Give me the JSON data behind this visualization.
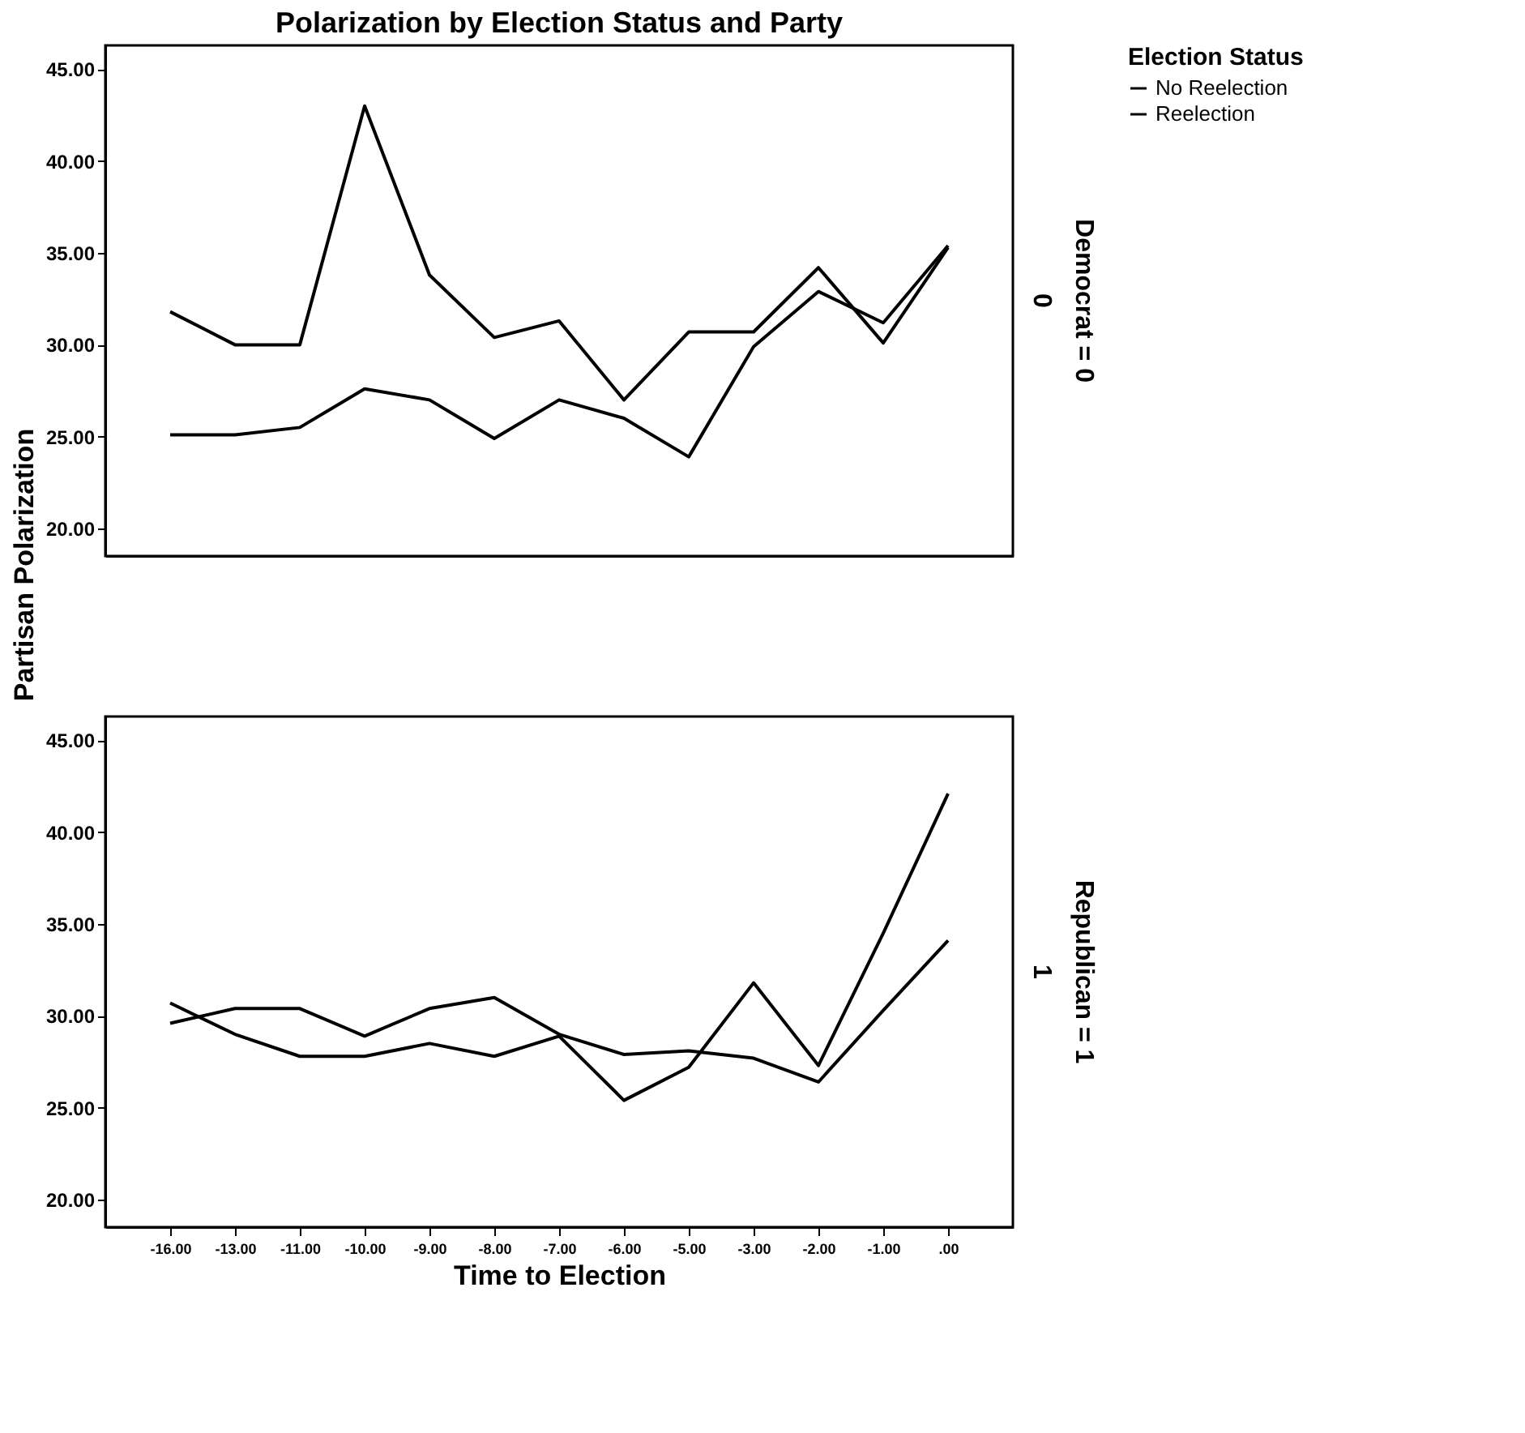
{
  "chart_data": [
    {
      "type": "line",
      "title": "Polarization by Election Status and Party",
      "ylabel": "Partisan Polarization",
      "legend_title": "Election Status",
      "legend": "top right",
      "grid": false,
      "marker": "none",
      "line_style": "solid",
      "tick_labels": "y",
      "categories": [
        "-16.00",
        "-13.00",
        "-11.00",
        "-10.00",
        "-9.00",
        "-8.00",
        "-7.00",
        "-6.00",
        "-5.00",
        "-3.00",
        "-2.00",
        "-1.00",
        ".00"
      ],
      "ylim": [
        18.5,
        46.3
      ],
      "yticks": [
        {
          "value": 20,
          "label": "20.00"
        },
        {
          "value": 25,
          "label": "25.00"
        },
        {
          "value": 30,
          "label": "30.00"
        },
        {
          "value": 35,
          "label": "35.00"
        },
        {
          "value": 40,
          "label": "40.00"
        },
        {
          "value": 45,
          "label": "45.00"
        }
      ],
      "annotations": [
        "Democrat = 0",
        "0"
      ],
      "series": [
        {
          "name": "No Reelection",
          "color": "#000000",
          "values": [
            31.8,
            30.0,
            30.0,
            43.0,
            33.8,
            30.4,
            31.3,
            27.0,
            30.7,
            30.7,
            34.2,
            30.1,
            35.3
          ]
        },
        {
          "name": "Reelection",
          "color": "#000000",
          "values": [
            25.1,
            25.1,
            25.5,
            27.6,
            27.0,
            24.9,
            27.0,
            26.0,
            23.9,
            29.9,
            32.9,
            31.2,
            35.4
          ]
        }
      ]
    },
    {
      "type": "line",
      "xlabel": "Time to Election",
      "grid": false,
      "marker": "none",
      "line_style": "solid",
      "categories": [
        "-16.00",
        "-13.00",
        "-11.00",
        "-10.00",
        "-9.00",
        "-8.00",
        "-7.00",
        "-6.00",
        "-5.00",
        "-3.00",
        "-2.00",
        "-1.00",
        ".00"
      ],
      "ylim": [
        18.5,
        46.3
      ],
      "yticks": [
        {
          "value": 20,
          "label": "20.00"
        },
        {
          "value": 25,
          "label": "25.00"
        },
        {
          "value": 30,
          "label": "30.00"
        },
        {
          "value": 35,
          "label": "35.00"
        },
        {
          "value": 40,
          "label": "40.00"
        },
        {
          "value": 45,
          "label": "45.00"
        }
      ],
      "annotations": [
        "Republican = 1",
        "1"
      ],
      "series": [
        {
          "name": "No Reelection",
          "color": "#000000",
          "values": [
            30.7,
            29.0,
            27.8,
            27.8,
            28.5,
            27.8,
            28.9,
            25.4,
            27.2,
            31.8,
            27.3,
            34.5,
            42.1
          ]
        },
        {
          "name": "Reelection",
          "color": "#000000",
          "values": [
            29.6,
            30.4,
            30.4,
            28.9,
            30.4,
            31.0,
            29.0,
            27.9,
            28.1,
            27.7,
            26.4,
            30.3,
            34.1
          ]
        }
      ]
    }
  ]
}
